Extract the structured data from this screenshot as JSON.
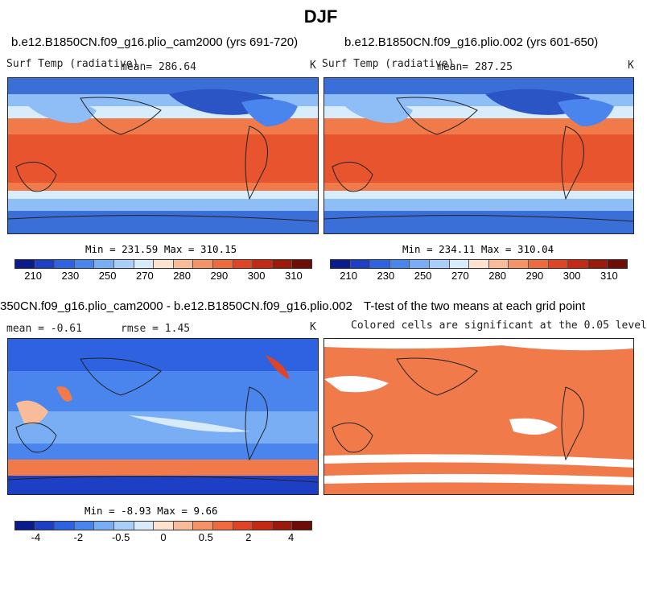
{
  "main_title": "DJF",
  "panels": [
    {
      "run_title": "b.e12.B1850CN.f09_g16.plio_cam2000 (yrs 691-720)",
      "variable": "Surf Temp (radiative)",
      "mean_label": "mean= 286.64",
      "units": "K",
      "stats": "Min = 231.59 Max = 310.15"
    },
    {
      "run_title": "b.e12.B1850CN.f09_g16.plio.002 (yrs 601-650)",
      "variable": "Surf Temp (radiative)",
      "mean_label": "mean= 287.25",
      "units": "K",
      "stats": "Min = 234.11 Max = 310.04"
    },
    {
      "run_title": "350CN.f09_g16.plio_cam2000 - b.e12.B1850CN.f09_g16.plio.002",
      "mean_label": "mean =  -0.61",
      "rmse_label": "rmse =   1.45",
      "units": "K",
      "stats": "Min =  -8.93 Max =   9.66"
    },
    {
      "run_title": "T-test of the two means at each grid point",
      "subtitle": "Colored cells are significant at the 0.05 level"
    }
  ],
  "colorbars": {
    "absolute": {
      "colors": [
        "#0a1c8c",
        "#1d3fc4",
        "#2f62e0",
        "#4a85ee",
        "#79aef5",
        "#a9cff9",
        "#d8ebfb",
        "#fde3cf",
        "#f9bc9a",
        "#f59368",
        "#ee6a3f",
        "#de4426",
        "#c22a15",
        "#9c1a0c",
        "#6e0c06"
      ],
      "tick_labels": [
        "210",
        "230",
        "250",
        "270",
        "280",
        "290",
        "300",
        "310"
      ]
    },
    "difference": {
      "colors": [
        "#0a1c8c",
        "#1d3fc4",
        "#2f62e0",
        "#4a85ee",
        "#79aef5",
        "#a9cff9",
        "#d8ebfb",
        "#fde3cf",
        "#f9bc9a",
        "#f59368",
        "#ee6a3f",
        "#de4426",
        "#c22a15",
        "#9c1a0c",
        "#6e0c06"
      ],
      "tick_labels": [
        "-4",
        "-2",
        "-0.5",
        "0",
        "0.5",
        "2",
        "4"
      ]
    }
  },
  "map_colors": {
    "ocean_warm": "#e8542e",
    "ocean_mid": "#f07a4a",
    "cold": "#3b6fd8",
    "cool": "#8ebef5",
    "pale": "#d9ecfb",
    "diff_base": "#4a85ee",
    "diff_pos": "#f07a4a",
    "ttest_fill": "#f07a4a",
    "ttest_blank": "#ffffff"
  }
}
